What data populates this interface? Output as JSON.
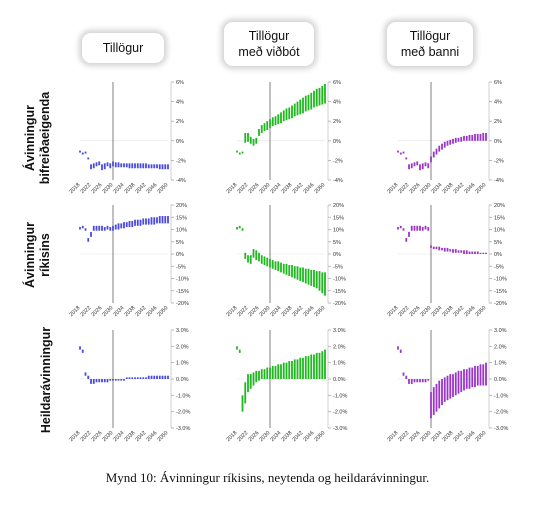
{
  "column_headers": [
    {
      "line1": "Tillögur",
      "line2": ""
    },
    {
      "line1": "Tillögur",
      "line2": "með viðbót"
    },
    {
      "line1": "Tillögur",
      "line2": "með banni"
    }
  ],
  "row_labels": [
    {
      "line1": "Ávinningur",
      "line2": "bifreiðaeigenda"
    },
    {
      "line1": "Ávinningur",
      "line2": "ríkisins"
    },
    {
      "line1": "Heildarávinningur",
      "line2": ""
    }
  ],
  "caption": "Mynd 10: Ávinningur ríkisins, neytenda og heildarávinningur.",
  "colors": {
    "col1": "#4a4ae0",
    "col2": "#1fb81f",
    "col3": "#9b35c9",
    "grid": "#d0d0d0",
    "vline": "#808080"
  },
  "chart_data": {
    "type": "bar",
    "layout": "3x3 small multiples",
    "x_ticks": [
      "2018",
      "2022",
      "2026",
      "2030",
      "2034",
      "2038",
      "2042",
      "2046",
      "2050"
    ],
    "x_range": [
      2018,
      2050
    ],
    "policy_start_year": 2030,
    "rows": [
      {
        "ylim": [
          -4,
          6
        ],
        "y_ticks": [
          "6%",
          "4%",
          "2%",
          "0%",
          "-2%",
          "-4%"
        ],
        "tick_values": [
          6,
          4,
          2,
          0,
          -2,
          -4
        ]
      },
      {
        "ylim": [
          -20,
          20
        ],
        "y_ticks": [
          "20%",
          "15%",
          "10%",
          "5%",
          "0%",
          "-5%",
          "-10%",
          "-15%",
          "-20%"
        ],
        "tick_values": [
          20,
          15,
          10,
          5,
          0,
          -5,
          -10,
          -15,
          -20
        ]
      },
      {
        "ylim": [
          -3,
          3
        ],
        "y_ticks": [
          "3.0%",
          "2.0%",
          "1.0%",
          "0.0%",
          "-1.0%",
          "-2.0%",
          "-3.0%"
        ],
        "tick_values": [
          3,
          2,
          1,
          0,
          -1,
          -2,
          -3
        ]
      }
    ],
    "panels": [
      [
        {
          "x": [
            2018,
            2019,
            2020,
            2021,
            2022,
            2023,
            2024,
            2025,
            2026,
            2027,
            2028,
            2029,
            2030,
            2031,
            2032,
            2033,
            2034,
            2035,
            2036,
            2037,
            2038,
            2039,
            2040,
            2041,
            2042,
            2043,
            2044,
            2045,
            2046,
            2047,
            2048,
            2049,
            2050
          ],
          "low": [
            -1.2,
            -1.4,
            -1.3,
            -1.9,
            -2.9,
            -2.8,
            -2.6,
            -2.5,
            -3.0,
            -2.9,
            -2.6,
            -2.8,
            -2.6,
            -2.7,
            -2.7,
            -2.7,
            -2.7,
            -2.7,
            -2.8,
            -2.8,
            -2.8,
            -2.8,
            -2.8,
            -2.8,
            -2.8,
            -2.8,
            -2.8,
            -2.8,
            -2.8,
            -2.9,
            -2.9,
            -2.9,
            -2.9
          ],
          "high": [
            -1.0,
            -1.2,
            -1.1,
            -1.7,
            -2.4,
            -2.3,
            -2.2,
            -2.1,
            -2.4,
            -2.3,
            -2.2,
            -2.3,
            -2.1,
            -2.2,
            -2.2,
            -2.3,
            -2.3,
            -2.3,
            -2.3,
            -2.3,
            -2.3,
            -2.3,
            -2.3,
            -2.3,
            -2.3,
            -2.4,
            -2.4,
            -2.4,
            -2.4,
            -2.4,
            -2.4,
            -2.4,
            -2.4
          ]
        },
        {
          "x": [
            2018,
            2019,
            2020,
            2021,
            2022,
            2023,
            2024,
            2025,
            2026,
            2027,
            2028,
            2029,
            2030,
            2031,
            2032,
            2033,
            2034,
            2035,
            2036,
            2037,
            2038,
            2039,
            2040,
            2041,
            2042,
            2043,
            2044,
            2045,
            2046,
            2047,
            2048,
            2049,
            2050
          ],
          "low": [
            -1.2,
            -1.4,
            -1.3,
            -0.2,
            -0.1,
            -0.3,
            -0.5,
            -0.3,
            0.5,
            0.8,
            1.0,
            1.1,
            1.3,
            1.5,
            1.6,
            1.7,
            1.8,
            2.0,
            2.1,
            2.2,
            2.3,
            2.5,
            2.6,
            2.7,
            2.8,
            3.0,
            3.1,
            3.2,
            3.4,
            3.5,
            3.6,
            3.7,
            3.8
          ],
          "high": [
            -1.0,
            -1.2,
            -1.1,
            0.8,
            0.8,
            0.4,
            0.2,
            0.3,
            1.2,
            1.6,
            1.8,
            2.0,
            2.2,
            2.4,
            2.5,
            2.7,
            2.9,
            3.1,
            3.3,
            3.4,
            3.6,
            3.8,
            4.0,
            4.2,
            4.4,
            4.6,
            4.7,
            4.9,
            5.1,
            5.3,
            5.4,
            5.6,
            5.8
          ]
        },
        {
          "x": [
            2018,
            2019,
            2020,
            2021,
            2022,
            2023,
            2024,
            2025,
            2026,
            2027,
            2028,
            2029,
            2030,
            2031,
            2032,
            2033,
            2034,
            2035,
            2036,
            2037,
            2038,
            2039,
            2040,
            2041,
            2042,
            2043,
            2044,
            2045,
            2046,
            2047,
            2048,
            2049,
            2050
          ],
          "low": [
            -1.2,
            -1.4,
            -1.3,
            -1.9,
            -2.9,
            -2.8,
            -2.6,
            -2.5,
            -3.0,
            -2.9,
            -2.6,
            -2.8,
            -2.2,
            -1.7,
            -1.4,
            -1.1,
            -0.9,
            -0.7,
            -0.5,
            -0.4,
            -0.3,
            -0.2,
            -0.1,
            -0.1,
            0.0,
            0.0,
            0.0,
            0.0,
            0.0,
            0.0,
            0.0,
            0.0,
            0.0
          ],
          "high": [
            -1.0,
            -1.2,
            -1.1,
            -1.7,
            -2.4,
            -2.3,
            -2.2,
            -2.1,
            -2.4,
            -2.3,
            -2.2,
            -2.3,
            -1.6,
            -1.1,
            -0.8,
            -0.5,
            -0.3,
            -0.1,
            0.0,
            0.1,
            0.2,
            0.3,
            0.3,
            0.4,
            0.5,
            0.5,
            0.6,
            0.6,
            0.7,
            0.7,
            0.7,
            0.8,
            0.8
          ]
        }
      ],
      [
        {
          "x": [
            2018,
            2019,
            2020,
            2021,
            2022,
            2023,
            2024,
            2025,
            2026,
            2027,
            2028,
            2029,
            2030,
            2031,
            2032,
            2033,
            2034,
            2035,
            2036,
            2037,
            2038,
            2039,
            2040,
            2041,
            2042,
            2043,
            2044,
            2045,
            2046,
            2047,
            2048,
            2049,
            2050
          ],
          "low": [
            10.0,
            10.5,
            9.5,
            5.0,
            7.0,
            9.5,
            9.5,
            9.5,
            9.5,
            9.5,
            10.0,
            9.5,
            9.5,
            10.0,
            10.0,
            10.5,
            10.5,
            11.0,
            11.0,
            11.0,
            11.5,
            11.5,
            11.5,
            12.0,
            12.0,
            12.0,
            12.0,
            12.0,
            12.5,
            12.5,
            12.5,
            12.5,
            12.5
          ],
          "high": [
            11.0,
            11.5,
            10.5,
            6.5,
            9.0,
            11.5,
            11.5,
            11.5,
            11.5,
            11.0,
            11.5,
            11.0,
            11.5,
            12.0,
            12.5,
            12.5,
            13.0,
            13.0,
            13.5,
            13.5,
            14.0,
            14.0,
            14.0,
            14.5,
            14.5,
            14.5,
            15.0,
            15.0,
            15.0,
            15.5,
            15.5,
            15.5,
            15.5
          ]
        },
        {
          "x": [
            2018,
            2019,
            2020,
            2021,
            2022,
            2023,
            2024,
            2025,
            2026,
            2027,
            2028,
            2029,
            2030,
            2031,
            2032,
            2033,
            2034,
            2035,
            2036,
            2037,
            2038,
            2039,
            2040,
            2041,
            2042,
            2043,
            2044,
            2045,
            2046,
            2047,
            2048,
            2049,
            2050
          ],
          "low": [
            10.0,
            10.5,
            9.5,
            -2.0,
            -3.5,
            -4.0,
            -1.5,
            -2.5,
            -3.0,
            -4.0,
            -4.5,
            -5.0,
            -5.5,
            -6.0,
            -6.5,
            -7.0,
            -7.5,
            -8.0,
            -8.5,
            -9.0,
            -9.5,
            -10.0,
            -10.5,
            -11.0,
            -11.5,
            -12.0,
            -12.5,
            -13.0,
            -13.5,
            -14.0,
            -15.0,
            -16.0,
            -17.0
          ],
          "high": [
            11.0,
            11.5,
            10.5,
            0.5,
            -0.5,
            -0.5,
            2.0,
            1.5,
            0.5,
            -0.5,
            -1.0,
            -1.5,
            -2.0,
            -2.5,
            -3.0,
            -3.0,
            -3.5,
            -4.0,
            -4.0,
            -4.5,
            -4.5,
            -5.0,
            -5.0,
            -5.5,
            -5.5,
            -6.0,
            -6.0,
            -6.5,
            -6.5,
            -7.0,
            -7.0,
            -7.5,
            -7.5
          ]
        },
        {
          "x": [
            2018,
            2019,
            2020,
            2021,
            2022,
            2023,
            2024,
            2025,
            2026,
            2027,
            2028,
            2029,
            2030,
            2031,
            2032,
            2033,
            2034,
            2035,
            2036,
            2037,
            2038,
            2039,
            2040,
            2041,
            2042,
            2043,
            2044,
            2045,
            2046,
            2047,
            2048,
            2049,
            2050
          ],
          "low": [
            10.0,
            10.5,
            9.5,
            5.0,
            7.0,
            9.5,
            9.5,
            9.5,
            9.5,
            9.5,
            10.0,
            9.5,
            2.5,
            2.0,
            2.0,
            1.5,
            1.5,
            1.0,
            1.0,
            1.0,
            0.5,
            0.5,
            0.5,
            0.5,
            0.0,
            0.0,
            0.0,
            0.0,
            0.0,
            0.0,
            0.0,
            0.0,
            0.0
          ],
          "high": [
            11.0,
            11.5,
            10.5,
            6.5,
            9.0,
            11.5,
            11.5,
            11.5,
            11.5,
            11.0,
            11.5,
            11.0,
            3.5,
            3.0,
            3.0,
            3.0,
            2.5,
            2.5,
            2.5,
            2.0,
            2.0,
            2.0,
            1.5,
            1.5,
            1.5,
            1.5,
            1.0,
            1.0,
            1.0,
            1.0,
            0.5,
            0.5,
            0.5
          ]
        }
      ],
      [
        {
          "x": [
            2018,
            2019,
            2020,
            2021,
            2022,
            2023,
            2024,
            2025,
            2026,
            2027,
            2028,
            2029,
            2030,
            2031,
            2032,
            2033,
            2034,
            2035,
            2036,
            2037,
            2038,
            2039,
            2040,
            2041,
            2042,
            2043,
            2044,
            2045,
            2046,
            2047,
            2048,
            2049,
            2050
          ],
          "low": [
            1.8,
            1.6,
            0.2,
            0.0,
            -0.3,
            -0.3,
            -0.2,
            -0.2,
            -0.2,
            -0.2,
            -0.2,
            -0.1,
            -0.1,
            -0.1,
            -0.1,
            -0.1,
            -0.1,
            0.0,
            0.0,
            0.0,
            0.0,
            0.0,
            0.0,
            0.0,
            0.0,
            0.0,
            0.0,
            0.0,
            0.0,
            0.0,
            0.0,
            0.0,
            0.0
          ],
          "high": [
            2.0,
            1.8,
            0.4,
            0.2,
            0.0,
            0.0,
            0.0,
            0.0,
            0.0,
            0.0,
            0.0,
            0.0,
            0.0,
            0.0,
            0.0,
            0.0,
            0.0,
            0.1,
            0.1,
            0.1,
            0.1,
            0.1,
            0.1,
            0.1,
            0.1,
            0.2,
            0.2,
            0.2,
            0.2,
            0.2,
            0.2,
            0.2,
            0.2
          ]
        },
        {
          "x": [
            2018,
            2019,
            2020,
            2021,
            2022,
            2023,
            2024,
            2025,
            2026,
            2027,
            2028,
            2029,
            2030,
            2031,
            2032,
            2033,
            2034,
            2035,
            2036,
            2037,
            2038,
            2039,
            2040,
            2041,
            2042,
            2043,
            2044,
            2045,
            2046,
            2047,
            2048,
            2049,
            2050
          ],
          "low": [
            1.8,
            1.6,
            -2.0,
            -1.5,
            -0.8,
            -0.6,
            -0.4,
            -0.2,
            -0.1,
            0.0,
            0.0,
            0.0,
            0.0,
            0.0,
            0.0,
            0.0,
            0.0,
            0.0,
            0.0,
            0.0,
            0.0,
            0.0,
            0.0,
            0.0,
            0.0,
            0.0,
            0.0,
            0.0,
            0.0,
            0.0,
            0.0,
            0.0,
            0.0
          ],
          "high": [
            2.0,
            1.8,
            -1.0,
            -0.2,
            0.3,
            0.3,
            0.4,
            0.5,
            0.5,
            0.6,
            0.6,
            0.7,
            0.7,
            0.8,
            0.8,
            0.9,
            0.9,
            1.0,
            1.0,
            1.1,
            1.1,
            1.2,
            1.2,
            1.3,
            1.3,
            1.4,
            1.4,
            1.5,
            1.5,
            1.6,
            1.6,
            1.7,
            1.8
          ]
        },
        {
          "x": [
            2018,
            2019,
            2020,
            2021,
            2022,
            2023,
            2024,
            2025,
            2026,
            2027,
            2028,
            2029,
            2030,
            2031,
            2032,
            2033,
            2034,
            2035,
            2036,
            2037,
            2038,
            2039,
            2040,
            2041,
            2042,
            2043,
            2044,
            2045,
            2046,
            2047,
            2048,
            2049,
            2050
          ],
          "low": [
            1.8,
            1.6,
            0.2,
            0.0,
            -0.3,
            -0.3,
            -0.2,
            -0.2,
            -0.2,
            -0.2,
            -0.2,
            -0.1,
            -2.4,
            -2.2,
            -2.0,
            -1.8,
            -1.6,
            -1.4,
            -1.3,
            -1.2,
            -1.1,
            -1.0,
            -0.9,
            -0.8,
            -0.7,
            -0.6,
            -0.6,
            -0.5,
            -0.5,
            -0.4,
            -0.4,
            -0.4,
            -0.4
          ],
          "high": [
            2.0,
            1.8,
            0.4,
            0.2,
            0.0,
            0.0,
            0.0,
            0.0,
            0.0,
            0.0,
            0.0,
            0.0,
            -0.8,
            -0.5,
            -0.3,
            -0.1,
            0.0,
            0.1,
            0.2,
            0.3,
            0.3,
            0.4,
            0.5,
            0.5,
            0.6,
            0.6,
            0.7,
            0.7,
            0.8,
            0.8,
            0.9,
            0.9,
            1.0
          ]
        }
      ]
    ]
  }
}
